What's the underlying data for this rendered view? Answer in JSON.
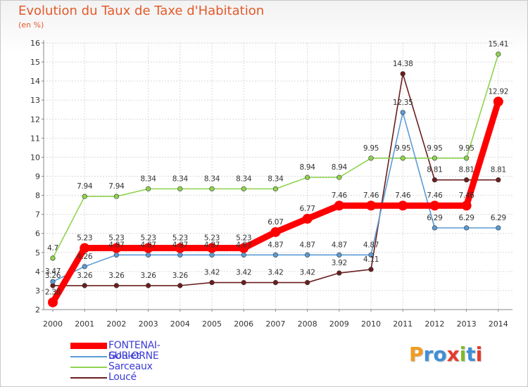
{
  "title": "Evolution du Taux de Taxe d'Habitation",
  "subtitle": "(en %)",
  "logo": {
    "text": "Proxiti",
    "colors": [
      "#f19b21",
      "#3f8fd6",
      "#3f8fd6",
      "#e53b2c",
      "#7fba2a",
      "#3f8fd6",
      "#e53b2c"
    ]
  },
  "chart_data": {
    "type": "line",
    "title": "Evolution du Taux de Taxe d'Habitation",
    "ylabel": "(en %)",
    "xlabel": "",
    "ylim": [
      2,
      16
    ],
    "yticks": [
      "2",
      "3",
      "4",
      "5",
      "6",
      "7",
      "8",
      "9",
      "10",
      "11",
      "12",
      "13",
      "14",
      "15",
      "16"
    ],
    "categories": [
      "2000",
      "2001",
      "2002",
      "2003",
      "2004",
      "2005",
      "2006",
      "2007",
      "2008",
      "2009",
      "2010",
      "2011",
      "2012",
      "2013",
      "2014"
    ],
    "grid": true,
    "legend": "bottom-left",
    "series": [
      {
        "name": "Loucé",
        "color": "#6b1e1e",
        "values": [
          3.26,
          3.26,
          3.26,
          3.26,
          3.26,
          3.42,
          3.42,
          3.42,
          3.42,
          3.92,
          4.11,
          14.38,
          8.81,
          8.81,
          8.81
        ],
        "labels": [
          "3.26",
          "3.26",
          "3.26",
          "3.26",
          "3.26",
          "3.42",
          "3.42",
          "3.42",
          "3.42",
          "3.92",
          "4.11",
          "14.38",
          "8.81",
          "8.81",
          "8.81"
        ]
      },
      {
        "name": "Sarceaux",
        "color": "#8fd34f",
        "values": [
          4.7,
          7.94,
          7.94,
          8.34,
          8.34,
          8.34,
          8.34,
          8.34,
          8.94,
          8.94,
          9.95,
          9.95,
          9.95,
          9.95,
          15.41
        ],
        "labels": [
          "4.7",
          "7.94",
          "7.94",
          "8.34",
          "8.34",
          "8.34",
          "8.34",
          "8.34",
          "8.94",
          "8.94",
          "9.95",
          "9.95",
          "9.95",
          "9.95",
          "15.41"
        ]
      },
      {
        "name": "Goulet",
        "color": "#5b9bd5",
        "values": [
          3.47,
          4.26,
          4.87,
          4.87,
          4.87,
          4.87,
          4.87,
          4.87,
          4.87,
          4.87,
          4.87,
          12.35,
          6.29,
          6.29,
          6.29
        ],
        "labels": [
          "3.47",
          "4.26",
          "4.87",
          "4.87",
          "4.87",
          "4.87",
          "4.87",
          "4.87",
          "4.87",
          "4.87",
          "4.87",
          "12.35",
          "6.29",
          "6.29",
          "6.29"
        ]
      },
      {
        "name": "FONTENAI-SUR-ORNE",
        "color": "#ff0000",
        "values": [
          2.38,
          5.23,
          5.23,
          5.23,
          5.23,
          5.23,
          5.23,
          6.07,
          6.77,
          7.46,
          7.46,
          7.46,
          7.46,
          7.46,
          12.92
        ],
        "labels": [
          "2.38",
          "5.23",
          "5.23",
          "5.23",
          "5.23",
          "5.23",
          "5.23",
          "6.07",
          "6.77",
          "7.46",
          "7.46",
          "7.46",
          "7.46",
          "7.46",
          "12.92"
        ]
      }
    ]
  },
  "legend": {
    "items": [
      {
        "label": "FONTENAI-SUR-ORNE",
        "color": "#ff0000"
      },
      {
        "label": "Goulet",
        "color": "#5b9bd5"
      },
      {
        "label": "Sarceaux",
        "color": "#8fd34f"
      },
      {
        "label": "Loucé",
        "color": "#6b1e1e"
      }
    ]
  }
}
